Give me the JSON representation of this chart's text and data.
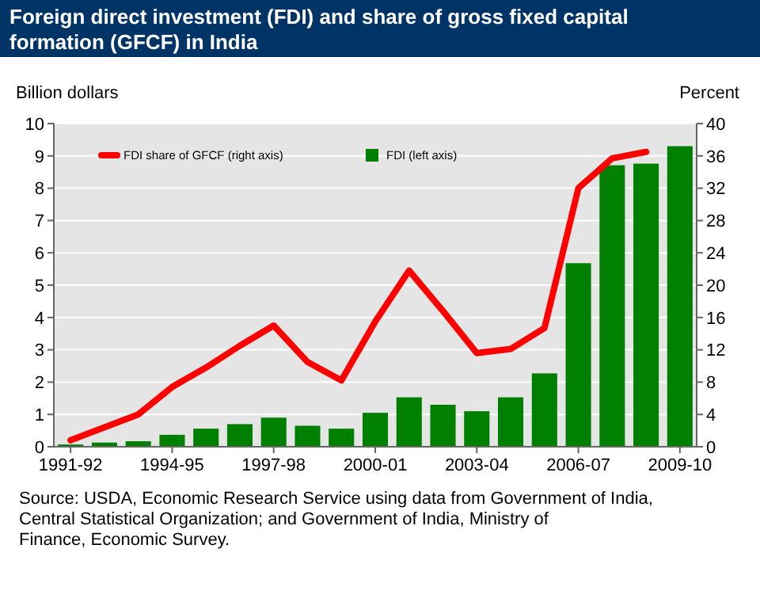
{
  "chart_data": {
    "type": "bar",
    "title": "Foreign direct investment (FDI) and share of gross fixed capital formation (GFCF) in India",
    "ylabel": "Billion dollars",
    "y2label": "Percent",
    "categories": [
      "1991-92",
      null,
      null,
      "1994-95",
      null,
      null,
      "1997-98",
      null,
      null,
      "2000-01",
      null,
      null,
      "2003-04",
      null,
      null,
      "2006-07",
      null,
      null,
      "2009-10"
    ],
    "series": [
      {
        "name": "FDI share of GFCF (right axis)",
        "type": "line",
        "axis": "y2",
        "color": "#ff0000",
        "values": [
          0.8,
          2.4,
          4,
          7.4,
          9.8,
          12.5,
          15,
          10.5,
          8.2,
          15.5,
          21.8,
          16.8,
          11.6,
          12.1,
          14.7,
          32,
          35.7,
          36.5,
          null
        ]
      },
      {
        "name": "FDI (left axis)",
        "color": "#008000",
        "values": [
          0.07,
          0.13,
          0.17,
          0.37,
          0.56,
          0.7,
          0.9,
          0.65,
          0.56,
          1.05,
          1.53,
          1.3,
          1.1,
          1.53,
          2.27,
          5.68,
          8.71,
          8.76,
          9.3
        ]
      }
    ],
    "ylim": [
      0,
      10
    ],
    "yticks": [
      0,
      1,
      2,
      3,
      4,
      5,
      6,
      7,
      8,
      9,
      10
    ],
    "y2lim": [
      0,
      40
    ],
    "y2ticks": [
      0,
      4,
      8,
      12,
      16,
      20,
      24,
      28,
      32,
      36,
      40
    ],
    "grid": "y",
    "legend": "top left",
    "annotations": [
      "Source: USDA, Economic Research Service using data from Government of India, Central Statistical Organization; and Government of India, Ministry of Finance, Economic Survey."
    ]
  }
}
